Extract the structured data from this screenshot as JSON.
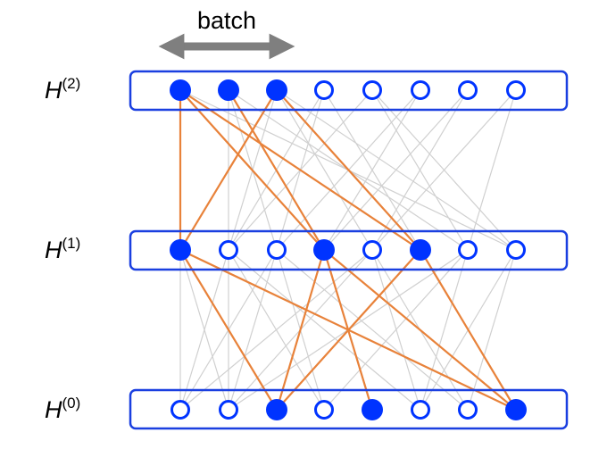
{
  "batch_label": "batch",
  "colors": {
    "node": "#0033ff",
    "layer_border": "#1a3fe0",
    "sampled_edge": "#e8823a",
    "gray_edge": "#d0d0d0",
    "arrow": "#7f7f7f"
  },
  "layers": [
    {
      "id": "h2",
      "name": "H",
      "superscript": "(2)",
      "filled": [
        true,
        true,
        true,
        false,
        false,
        false,
        false,
        false
      ]
    },
    {
      "id": "h1",
      "name": "H",
      "superscript": "(1)",
      "filled": [
        true,
        false,
        false,
        true,
        false,
        true,
        false,
        false
      ]
    },
    {
      "id": "h0",
      "name": "H",
      "superscript": "(0)",
      "filled": [
        false,
        false,
        true,
        false,
        true,
        false,
        false,
        true
      ]
    }
  ],
  "edges": {
    "h2_h1_sampled": [
      [
        0,
        0
      ],
      [
        0,
        3
      ],
      [
        0,
        5
      ],
      [
        1,
        3
      ],
      [
        2,
        0
      ],
      [
        2,
        5
      ]
    ],
    "h1_h0_sampled": [
      [
        0,
        2
      ],
      [
        0,
        7
      ],
      [
        3,
        2
      ],
      [
        3,
        4
      ],
      [
        3,
        7
      ],
      [
        5,
        2
      ],
      [
        5,
        7
      ]
    ],
    "h2_h1_gray": [
      [
        1,
        1
      ],
      [
        1,
        2
      ],
      [
        2,
        1
      ],
      [
        2,
        4
      ],
      [
        3,
        1
      ],
      [
        3,
        2
      ],
      [
        3,
        5
      ],
      [
        4,
        1
      ],
      [
        4,
        6
      ],
      [
        4,
        7
      ],
      [
        5,
        2
      ],
      [
        5,
        3
      ],
      [
        6,
        3
      ],
      [
        6,
        4
      ],
      [
        7,
        4
      ],
      [
        7,
        6
      ],
      [
        0,
        7
      ],
      [
        1,
        6
      ],
      [
        2,
        7
      ]
    ],
    "h1_h0_gray": [
      [
        1,
        0
      ],
      [
        1,
        1
      ],
      [
        1,
        3
      ],
      [
        1,
        5
      ],
      [
        2,
        0
      ],
      [
        2,
        1
      ],
      [
        2,
        3
      ],
      [
        2,
        6
      ],
      [
        4,
        0
      ],
      [
        4,
        1
      ],
      [
        4,
        5
      ],
      [
        4,
        6
      ],
      [
        6,
        3
      ],
      [
        6,
        5
      ],
      [
        7,
        5
      ],
      [
        7,
        6
      ],
      [
        0,
        0
      ],
      [
        0,
        1
      ],
      [
        6,
        1
      ]
    ]
  }
}
